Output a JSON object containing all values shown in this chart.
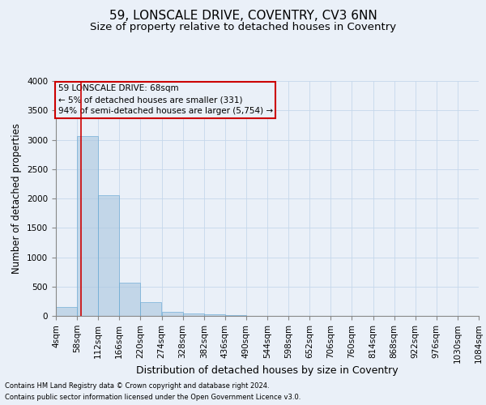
{
  "title_line1": "59, LONSCALE DRIVE, COVENTRY, CV3 6NN",
  "title_line2": "Size of property relative to detached houses in Coventry",
  "xlabel": "Distribution of detached houses by size in Coventry",
  "ylabel": "Number of detached properties",
  "footnote1": "Contains HM Land Registry data © Crown copyright and database right 2024.",
  "footnote2": "Contains public sector information licensed under the Open Government Licence v3.0.",
  "annotation_line1": "59 LONSCALE DRIVE: 68sqm",
  "annotation_line2": "← 5% of detached houses are smaller (331)",
  "annotation_line3": "94% of semi-detached houses are larger (5,754) →",
  "property_size": 68,
  "bin_edges": [
    4,
    58,
    112,
    166,
    220,
    274,
    328,
    382,
    436,
    490,
    544,
    598,
    652,
    706,
    760,
    814,
    868,
    922,
    976,
    1030,
    1084
  ],
  "bar_heights": [
    150,
    3060,
    2060,
    570,
    235,
    75,
    45,
    25,
    15,
    5,
    2,
    1,
    0,
    0,
    0,
    0,
    0,
    0,
    0,
    0
  ],
  "bar_color": "#adc8e0",
  "bar_edge_color": "#6aaad4",
  "bar_alpha": 0.65,
  "vline_color": "#cc0000",
  "vline_x": 68,
  "ylim": [
    0,
    4000
  ],
  "xlim": [
    4,
    1084
  ],
  "grid_color": "#c5d8eb",
  "bg_color": "#eaf0f8",
  "annotation_box_color": "#cc0000",
  "title1_fontsize": 11,
  "title2_fontsize": 9.5,
  "xlabel_fontsize": 9,
  "ylabel_fontsize": 8.5,
  "tick_fontsize": 7.5,
  "footnote_fontsize": 6.0
}
